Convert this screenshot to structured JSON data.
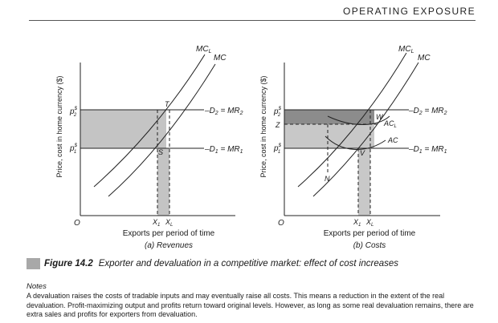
{
  "header": {
    "running_head": "OPERATING EXPOSURE"
  },
  "figure": {
    "panel_a": {
      "ylabel": "Price, cost in home currency ($)",
      "xlabel": "Exports per period of time",
      "subtitle": "(a) Revenues",
      "origin": "O",
      "p2": "p",
      "p1": "p",
      "price_sup": "$",
      "p2_sub": "2",
      "p1_sub": "1",
      "mcl": "MC",
      "mcl_sub": "L",
      "mc": "MC",
      "d2": "D",
      "d2_sub": "2",
      "mr2": " = MR",
      "d1": "D",
      "d1_sub": "1",
      "mr1": " = MR",
      "T": "T",
      "S": "S",
      "x1": "X",
      "x1_sub": "1",
      "xl": "X",
      "xl_sub": "L"
    },
    "panel_b": {
      "ylabel": "Price, cost in home currency ($)",
      "xlabel": "Exports per period of time",
      "subtitle": "(b) Costs",
      "origin": "O",
      "N": "N",
      "Z": "Z",
      "p2": "p",
      "p1": "p",
      "price_sup": "$",
      "p2_sub": "2",
      "p1_sub": "1",
      "mcl": "MC",
      "mcl_sub": "L",
      "mc": "MC",
      "d2": "D",
      "d2_sub": "2",
      "mr2": " = MR",
      "d1": "D",
      "d1_sub": "1",
      "mr1": " = MR",
      "W": "W",
      "V": "V",
      "acl": "AC",
      "acl_sub": "L",
      "ac": "AC",
      "x1": "X",
      "x1_sub": "1",
      "xl": "X",
      "xl_sub": "L"
    }
  },
  "caption": {
    "number": "Figure 14.2",
    "text": "Exporter and devaluation in a competitive market: effect of cost increases"
  },
  "notes": {
    "title": "Notes",
    "body": "A devaluation raises the costs of tradable inputs and may eventually raise all costs. This means a reduction in the extent of the real devaluation. Profit-maximizing output and profits return toward original levels. However, as long as some real devaluation remains, there are extra sales and profits for exporters from devaluation."
  }
}
